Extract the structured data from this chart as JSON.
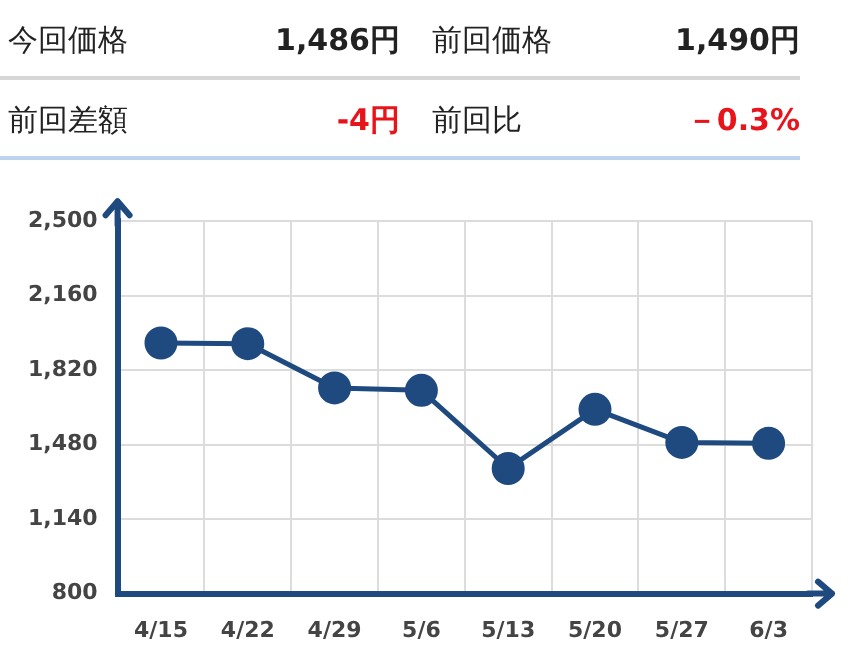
{
  "chart_data": [
    {
      "type": "other",
      "annotations": [
        "今回価格",
        "1,486円",
        "前回価格",
        "1,490円",
        "前回差額",
        "-4円",
        "前回比",
        "－0.3%"
      ]
    },
    {
      "type": "line",
      "categories": [
        "4/15",
        "4/22",
        "4/29",
        "5/6",
        "5/13",
        "5/20",
        "5/27",
        "6/3"
      ],
      "series": [
        {
          "color": "#1f4a80",
          "values": [
            1944,
            1941,
            1739,
            1728,
            1371,
            1641,
            1490,
            1486
          ]
        }
      ],
      "ylim": [
        800,
        2500
      ],
      "yticks": [
        800,
        {
          "value": 1140,
          "label": "1,140"
        },
        {
          "value": 1480,
          "label": "1,480"
        },
        {
          "value": 1820,
          "label": "1,820"
        },
        {
          "value": 2160,
          "label": "2,160"
        },
        {
          "value": 2500,
          "label": "2,500"
        }
      ],
      "grid": true,
      "marker": "circle"
    }
  ]
}
